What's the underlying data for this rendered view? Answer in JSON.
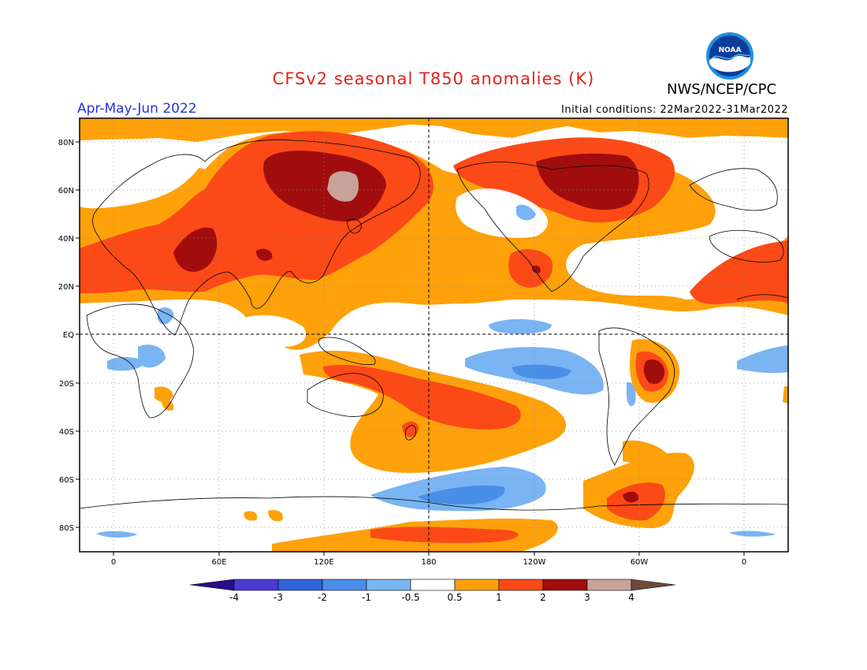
{
  "title": "CFSv2 seasonal T850 anomalies (K)",
  "agency": "NWS/NCEP/CPC",
  "logo_text": "NOAA",
  "season": "Apr-May-Jun 2022",
  "initial_conditions": "Initial conditions: 22Mar2022-31Mar2022",
  "lat_labels": [
    "80N",
    "60N",
    "40N",
    "20N",
    "EQ",
    "20S",
    "40S",
    "60S",
    "80S"
  ],
  "lon_labels": [
    "0",
    "60E",
    "120E",
    "180",
    "120W",
    "60W",
    "0"
  ],
  "colorbar": {
    "labels": [
      "-4",
      "-3",
      "-2",
      "-1",
      "-0.5",
      "0.5",
      "1",
      "2",
      "3",
      "4"
    ],
    "colors": [
      "#2a0d8a",
      "#4a3ad0",
      "#2e63d6",
      "#4a8ee8",
      "#7ab4f2",
      "#ffffff",
      "#fea10a",
      "#fb4a17",
      "#a10d0d",
      "#c8a298",
      "#6e4a3a"
    ]
  }
}
